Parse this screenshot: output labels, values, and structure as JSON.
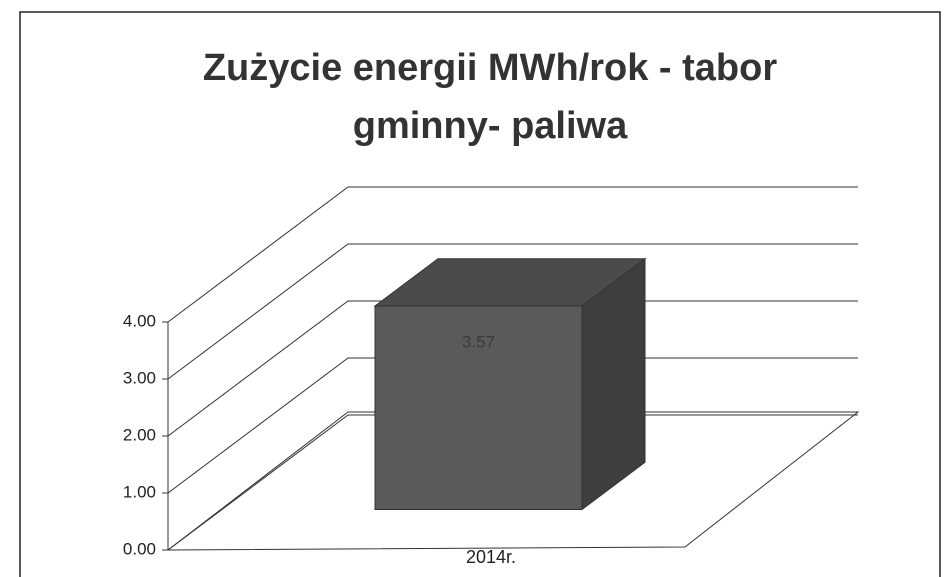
{
  "chart_data": {
    "type": "bar3d",
    "title": [
      "Zużycie energii   MWh/rok - tabor",
      "gminny- paliwa"
    ],
    "categories": [
      "2014r."
    ],
    "values": [
      3.57
    ],
    "color": "#5a5a5a",
    "ylim": [
      0,
      4
    ],
    "yticks": [
      {
        "value": 0,
        "label": "0.00"
      },
      {
        "value": 1,
        "label": "1.00"
      },
      {
        "value": 2,
        "label": "2.00"
      },
      {
        "value": 3,
        "label": "3.00"
      },
      {
        "value": 4,
        "label": "4.00"
      }
    ],
    "grid": true
  }
}
